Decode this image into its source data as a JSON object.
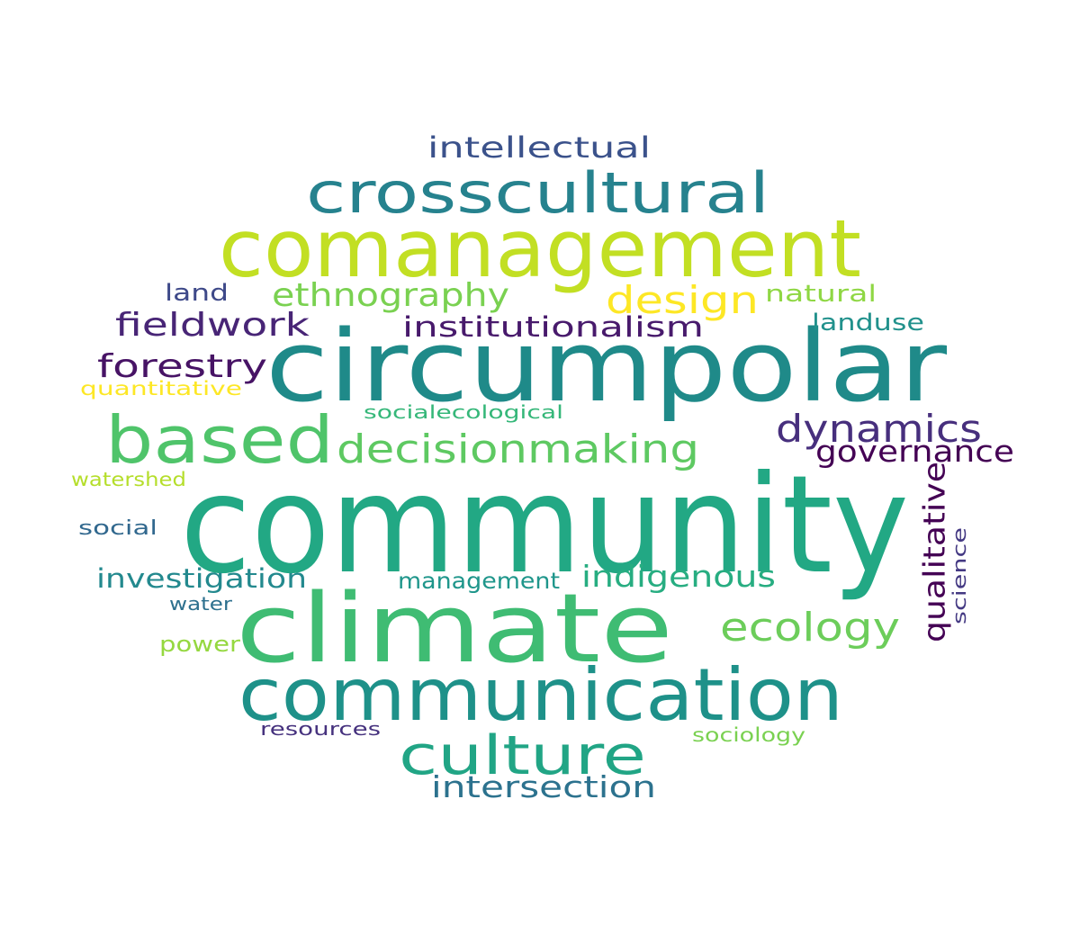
{
  "words": [
    {
      "id": "community",
      "text": "community",
      "color": "#22a884"
    },
    {
      "id": "circumpolar",
      "text": "circumpolar",
      "color": "#1f8a89"
    },
    {
      "id": "climate",
      "text": "climate",
      "color": "#3fbc73"
    },
    {
      "id": "comanagement",
      "text": "comanagement",
      "color": "#c2df23"
    },
    {
      "id": "communication",
      "text": "communication",
      "color": "#1e9189"
    },
    {
      "id": "based",
      "text": "based",
      "color": "#4fc46a"
    },
    {
      "id": "crosscultural",
      "text": "crosscultural",
      "color": "#26828e"
    },
    {
      "id": "culture",
      "text": "culture",
      "color": "#21a585"
    },
    {
      "id": "decisionmaking",
      "text": "decisionmaking",
      "color": "#5ec962"
    },
    {
      "id": "dynamics",
      "text": "dynamics",
      "color": "#472f7d"
    },
    {
      "id": "ecology",
      "text": "ecology",
      "color": "#6ccd5a"
    },
    {
      "id": "design",
      "text": "design",
      "color": "#fde725"
    },
    {
      "id": "ethnography",
      "text": "ethnography",
      "color": "#7ad151"
    },
    {
      "id": "fieldwork",
      "text": "fieldwork",
      "color": "#482576"
    },
    {
      "id": "forestry",
      "text": "forestry",
      "color": "#471365"
    },
    {
      "id": "institutionalism",
      "text": "institutionalism",
      "color": "#481a6c"
    },
    {
      "id": "governance",
      "text": "governance",
      "color": "#440154"
    },
    {
      "id": "intersection",
      "text": "intersection",
      "color": "#2c728e"
    },
    {
      "id": "indigenous",
      "text": "indigenous",
      "color": "#27ad81"
    },
    {
      "id": "intellectual",
      "text": "intellectual",
      "color": "#3b528b"
    },
    {
      "id": "investigation",
      "text": "investigation",
      "color": "#23898e"
    },
    {
      "id": "management",
      "text": "management",
      "color": "#1f968b"
    },
    {
      "id": "qualitative",
      "text": "qualitative",
      "color": "#440154"
    },
    {
      "id": "natural",
      "text": "natural",
      "color": "#8fd744"
    },
    {
      "id": "land",
      "text": "land",
      "color": "#3e4989"
    },
    {
      "id": "landuse",
      "text": "landuse",
      "color": "#21918c"
    },
    {
      "id": "quantitative",
      "text": "quantitative",
      "color": "#fde725"
    },
    {
      "id": "socialecological",
      "text": "socialecological",
      "color": "#35b779"
    },
    {
      "id": "watershed",
      "text": "watershed",
      "color": "#b5de2b"
    },
    {
      "id": "social",
      "text": "social",
      "color": "#31688e"
    },
    {
      "id": "science",
      "text": "science",
      "color": "#443983"
    },
    {
      "id": "water",
      "text": "water",
      "color": "#2d708e"
    },
    {
      "id": "power",
      "text": "power",
      "color": "#95d840"
    },
    {
      "id": "resources",
      "text": "resources",
      "color": "#46327e"
    },
    {
      "id": "sociology",
      "text": "sociology",
      "color": "#7ad151"
    }
  ]
}
